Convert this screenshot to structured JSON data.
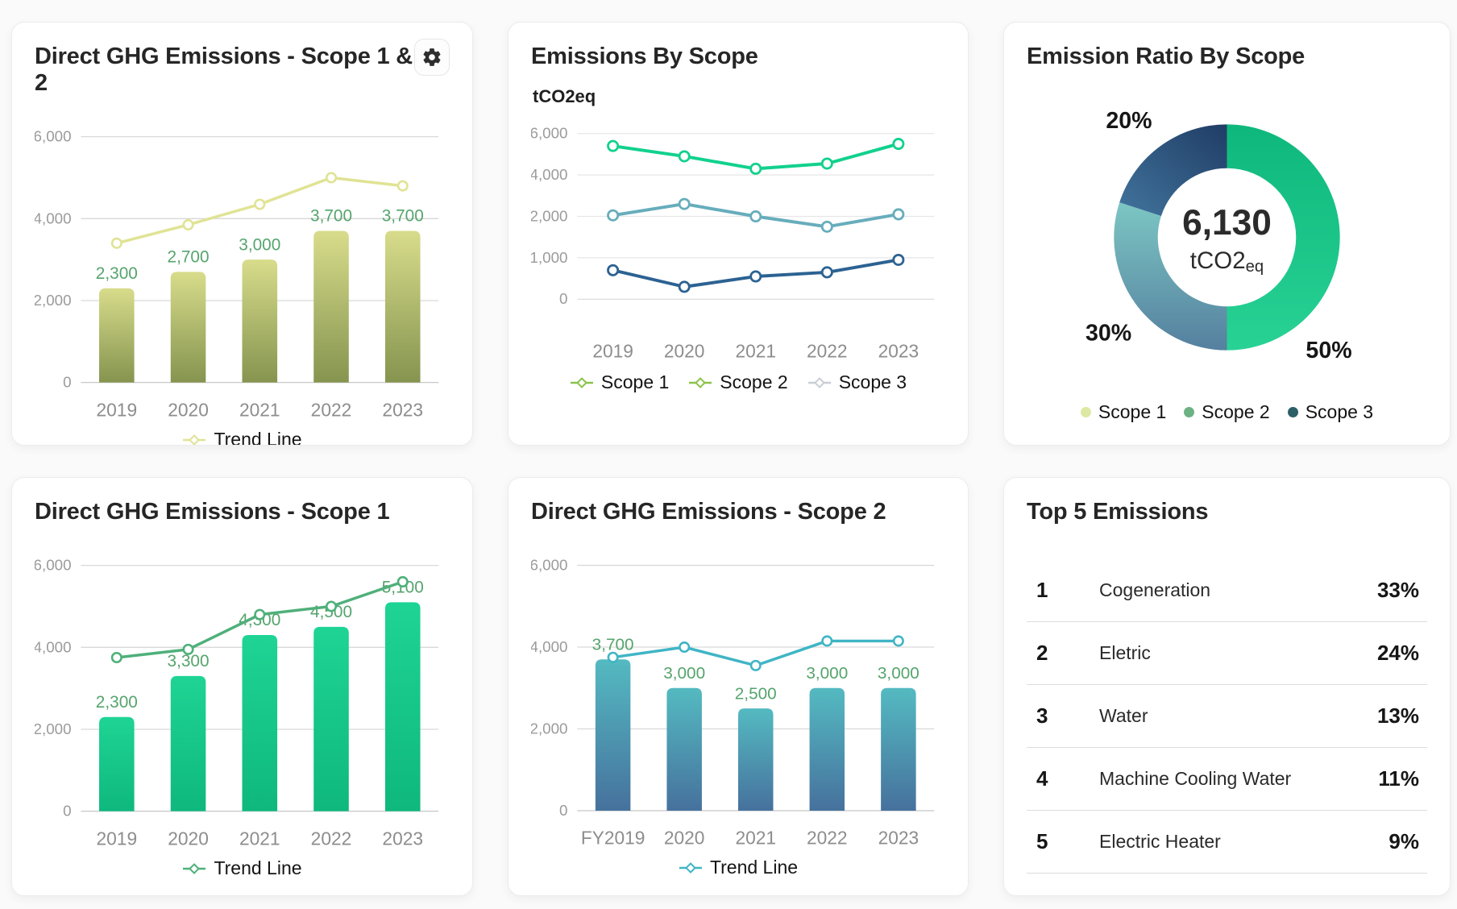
{
  "icons": {
    "settings": "gear-icon"
  },
  "colors": {
    "data_label_green": "#55a46d",
    "axis_tick_gray": "#9b9b9b",
    "x_label_gray": "#8d8d8d",
    "grid_gray": "#d9d9d9"
  },
  "chart_data": [
    {
      "id": "direct-ghg-scope-1-2",
      "type": "bar",
      "title": "Direct GHG Emissions - Scope 1 & 2",
      "categories": [
        "2019",
        "2020",
        "2021",
        "2022",
        "2023"
      ],
      "bar_values": [
        2300,
        2700,
        3000,
        3700,
        3700
      ],
      "bar_gradient": [
        "#d8dc8b",
        "#85944f"
      ],
      "label_color": "#55a46d",
      "trend": {
        "name": "Trend Line",
        "values": [
          3400,
          3850,
          4350,
          5000,
          4800
        ],
        "color": "#e0e394"
      },
      "y_ticks": [
        0,
        2000,
        4000,
        6000
      ],
      "axis": "linear",
      "legend": [
        {
          "label": "Trend Line",
          "color": "#e0e394"
        }
      ]
    },
    {
      "id": "emissions-by-scope",
      "type": "line",
      "title": "Emissions By Scope",
      "y_axis_label": "tCO2eq",
      "categories": [
        "2019",
        "2020",
        "2021",
        "2022",
        "2023"
      ],
      "series": [
        {
          "name": "Scope 1",
          "values": [
            5400,
            4900,
            4300,
            4550,
            5500
          ],
          "color": "#11d18d"
        },
        {
          "name": "Scope 2",
          "values": [
            2050,
            2600,
            2000,
            1750,
            2100
          ],
          "color": "#67adbc"
        },
        {
          "name": "Scope 3",
          "values": [
            700,
            300,
            550,
            650,
            950
          ],
          "color": "#2c6292"
        }
      ],
      "y_ticks": [
        0,
        1000,
        2000,
        4000,
        6000
      ],
      "axis": "equal-tick-spacing",
      "legend": [
        {
          "label": "Scope 1",
          "color": "#8bc34a"
        },
        {
          "label": "Scope 2",
          "color": "#8bc34a"
        },
        {
          "label": "Scope 3",
          "color": "#c9ced3"
        }
      ]
    },
    {
      "id": "emission-ratio-by-scope",
      "type": "donut",
      "title": "Emission Ratio By Scope",
      "center_value": "6,130",
      "center_unit": "tCO2",
      "center_unit_sub": "eq",
      "slices": [
        {
          "pct": 50,
          "pct_label": "50%",
          "color_from": "#0eb87c",
          "color_to": "#28d295"
        },
        {
          "pct": 30,
          "pct_label": "30%",
          "color_from": "#7cc6c3",
          "color_to": "#55809f"
        },
        {
          "pct": 20,
          "pct_label": "20%",
          "color_from": "#41749d",
          "color_to": "#203d65"
        }
      ],
      "legend": [
        {
          "label": "Scope 1",
          "color": "#dde8a3"
        },
        {
          "label": "Scope 2",
          "color": "#6cb183"
        },
        {
          "label": "Scope 3",
          "color": "#2d5f68"
        }
      ]
    },
    {
      "id": "direct-ghg-scope-1",
      "type": "bar",
      "title": "Direct GHG Emissions - Scope 1",
      "categories": [
        "2019",
        "2020",
        "2021",
        "2022",
        "2023"
      ],
      "bar_values": [
        2300,
        3300,
        4300,
        4500,
        5100
      ],
      "bar_gradient": [
        "#1ed494",
        "#0fb87d"
      ],
      "label_color": "#55a46d",
      "trend": {
        "name": "Trend Line",
        "values": [
          3750,
          3950,
          4800,
          5000,
          5600
        ],
        "color": "#4fb07a"
      },
      "y_ticks": [
        0,
        2000,
        4000,
        6000
      ],
      "axis": "linear",
      "legend": [
        {
          "label": "Trend Line",
          "color": "#4fb07a"
        }
      ]
    },
    {
      "id": "direct-ghg-scope-2",
      "type": "bar",
      "title": "Direct GHG Emissions - Scope 2",
      "categories": [
        "FY2019",
        "2020",
        "2021",
        "2022",
        "2023"
      ],
      "bar_values": [
        3700,
        3000,
        2500,
        3000,
        3000
      ],
      "bar_gradient": [
        "#54bac1",
        "#46719d"
      ],
      "label_color": "#55a46d",
      "trend": {
        "name": "Trend Line",
        "values": [
          3750,
          4000,
          3550,
          4150,
          4150
        ],
        "color": "#3fb5c5"
      },
      "y_ticks": [
        0,
        2000,
        4000,
        6000
      ],
      "axis": "linear",
      "legend": [
        {
          "label": "Trend Line",
          "color": "#3fb5c5"
        }
      ]
    },
    {
      "id": "top-5-emissions",
      "type": "table",
      "title": "Top 5 Emissions",
      "rows": [
        {
          "rank": "1",
          "name": "Cogeneration",
          "pct": "33%"
        },
        {
          "rank": "2",
          "name": "Eletric",
          "pct": "24%"
        },
        {
          "rank": "3",
          "name": "Water",
          "pct": "13%"
        },
        {
          "rank": "4",
          "name": "Machine Cooling Water",
          "pct": "11%"
        },
        {
          "rank": "5",
          "name": "Electric Heater",
          "pct": "9%"
        }
      ]
    }
  ]
}
